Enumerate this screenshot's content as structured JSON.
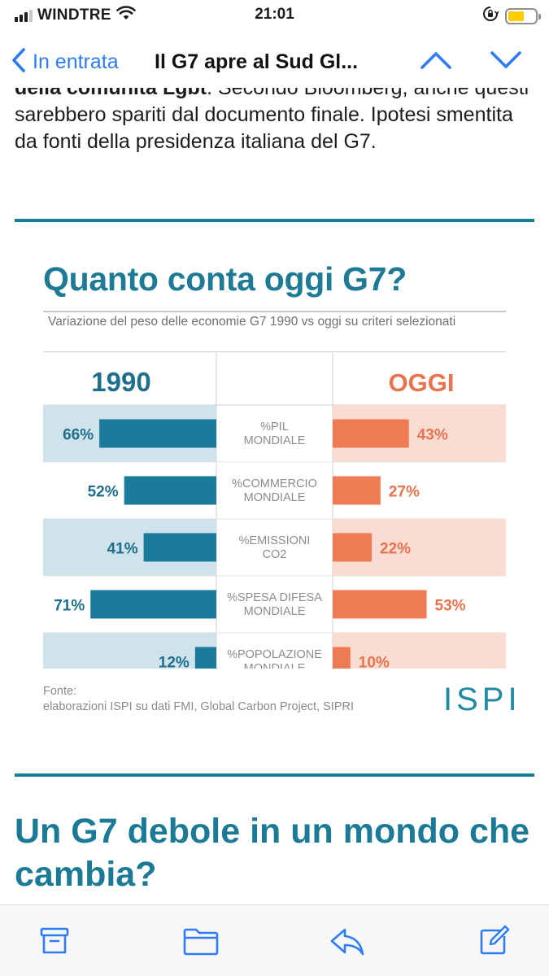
{
  "status_bar": {
    "carrier": "WINDTRE",
    "time": "21:01",
    "icons": [
      "signal-icon",
      "wifi-icon",
      "orientation-lock-icon",
      "battery-icon"
    ]
  },
  "nav": {
    "back_label": "In entrata",
    "mail_title": "Il G7 apre al Sud Gl...",
    "icons": [
      "chevron-left-icon",
      "chevron-up-icon",
      "chevron-down-icon"
    ]
  },
  "article": {
    "paragraph_bold": "della comunità Lgbt",
    "paragraph_rest": ". Secondo Bloomberg, anche questi sarebbero spariti dal documento finale. Ipotesi smentita da fonti della presidenza italiana del G7.",
    "section_heading": "Un G7 debole in un mondo che cambia?"
  },
  "infographic": {
    "title": "Quanto conta oggi G7?",
    "subtitle": "Variazione del peso delle economie G7 1990 vs oggi su criteri selezionati",
    "source_label": "Fonte:",
    "source_text": "elaborazioni ISPI su dati FMI, Global Carbon Project, SIPRI",
    "logo_text": "ISPI"
  },
  "chart_data": {
    "type": "bar",
    "layout": "butterfly",
    "title": "Quanto conta oggi G7?",
    "subtitle": "Variazione del peso delle economie G7 1990 vs oggi su criteri selezionati",
    "categories": [
      [
        "%PIL",
        "MONDIALE"
      ],
      [
        "%COMMERCIO",
        "MONDIALE"
      ],
      [
        "%EMISSIONI",
        "CO2"
      ],
      [
        "%SPESA DIFESA",
        "MONDIALE"
      ],
      [
        "%POPOLAZIONE",
        "MONDIALE"
      ]
    ],
    "series": [
      {
        "name": "1990",
        "values": [
          66,
          52,
          41,
          71,
          12
        ],
        "color": "#1b7b9b",
        "band_color": "#cfe3ec"
      },
      {
        "name": "OGGI",
        "values": [
          43,
          27,
          22,
          53,
          10
        ],
        "color": "#ef7b55",
        "band_color": "#fbdcd3"
      }
    ],
    "value_suffix": "%",
    "label_colors": {
      "1990": "#1f6f8c",
      "OGGI": "#e8734f",
      "category": "#8c8c8c"
    }
  },
  "toolbar": {
    "icons": [
      "archive-icon",
      "folder-icon",
      "reply-icon",
      "compose-icon"
    ]
  },
  "colors": {
    "accent": "#2f7bf5",
    "teal": "#167f98"
  }
}
